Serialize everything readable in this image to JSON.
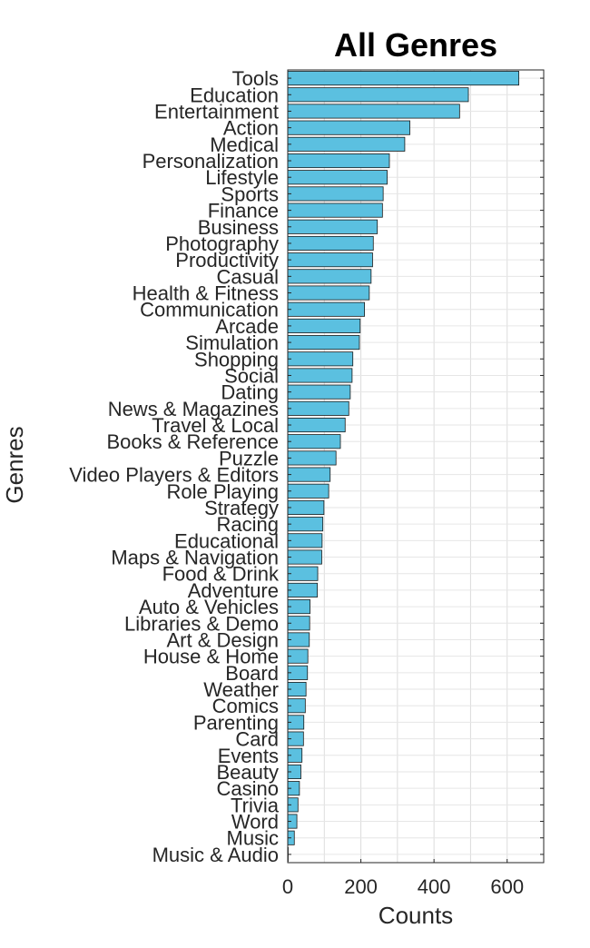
{
  "chart_data": {
    "type": "bar",
    "orientation": "horizontal",
    "title": "All Genres",
    "xlabel": "Counts",
    "ylabel": "Genres",
    "xlim": [
      0,
      700
    ],
    "xticks": [
      0,
      200,
      400,
      600
    ],
    "grid": true,
    "bar_color": "#5bc0e0",
    "bar_edge_color": "#1a1a1a",
    "categories": [
      "Tools",
      "Education",
      "Entertainment",
      "Action",
      "Medical",
      "Personalization",
      "Lifestyle",
      "Sports",
      "Finance",
      "Business",
      "Photography",
      "Productivity",
      "Casual",
      "Health & Fitness",
      "Communication",
      "Arcade",
      "Simulation",
      "Shopping",
      "Social",
      "Dating",
      "News & Magazines",
      "Travel & Local",
      "Books & Reference",
      "Puzzle",
      "Video Players & Editors",
      "Role Playing",
      "Strategy",
      "Racing",
      "Educational",
      "Maps & Navigation",
      "Food & Drink",
      "Adventure",
      "Auto & Vehicles",
      "Libraries & Demo",
      "Art & Design",
      "House & Home",
      "Board",
      "Weather",
      "Comics",
      "Parenting",
      "Card",
      "Events",
      "Beauty",
      "Casino",
      "Trivia",
      "Word",
      "Music",
      "Music & Audio"
    ],
    "values": [
      632,
      494,
      470,
      334,
      320,
      278,
      272,
      261,
      259,
      245,
      234,
      232,
      228,
      223,
      210,
      198,
      196,
      178,
      176,
      171,
      167,
      157,
      144,
      132,
      116,
      112,
      99,
      96,
      94,
      93,
      82,
      81,
      61,
      60,
      59,
      55,
      54,
      50,
      48,
      44,
      43,
      39,
      36,
      32,
      28,
      25,
      18,
      1
    ]
  }
}
